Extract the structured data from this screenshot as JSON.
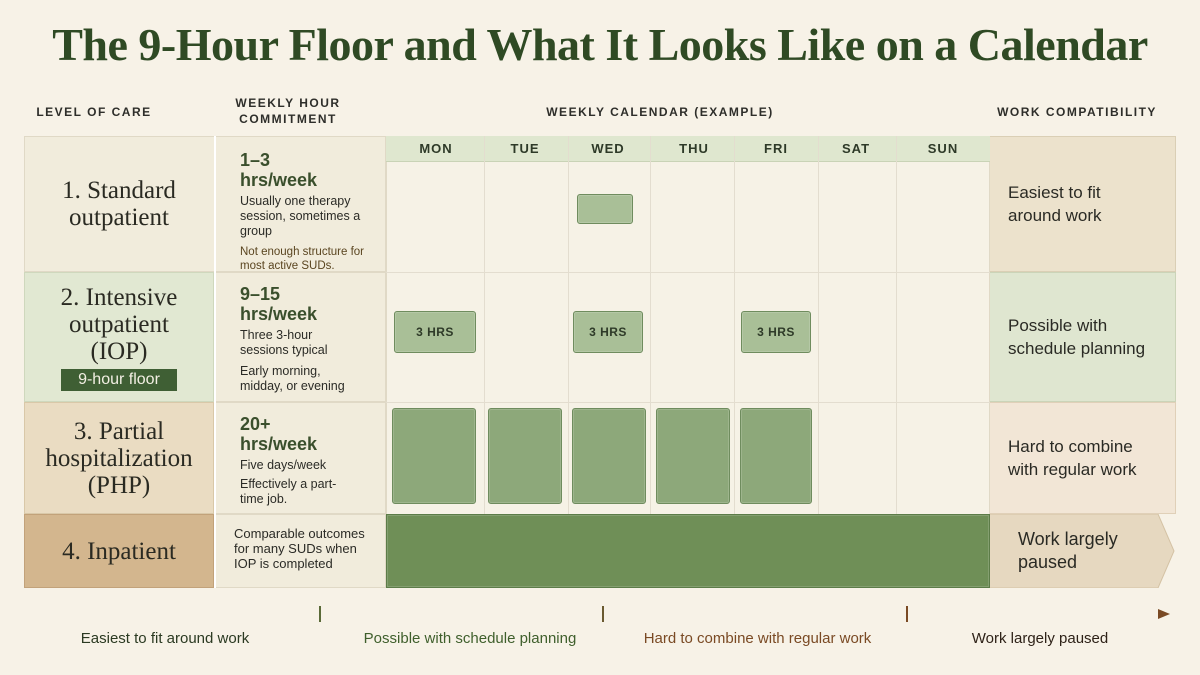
{
  "title": "The 9-Hour Floor and What It Looks Like on a Calendar",
  "headers": {
    "level_of_care": "LEVEL OF CARE",
    "weekly_hour_line1": "WEEKLY HOUR",
    "weekly_hour_line2": "COMMITMENT",
    "weekly_calendar": "WEEKLY CALENDAR (EXAMPLE)",
    "work_compat": "WORK COMPATIBILITY"
  },
  "days": [
    "MON",
    "TUE",
    "WED",
    "THU",
    "FRI",
    "SAT",
    "SUN"
  ],
  "rows": [
    {
      "care_line1": "1. Standard",
      "care_line2": "outpatient",
      "hours_big1": "1–3",
      "hours_big2": "hrs/week",
      "desc": "Usually one therapy session, sometimes a group",
      "note": "Not enough structure for most active SUDs.",
      "compat": "Easiest to fit around work"
    },
    {
      "care_line1": "2. Intensive",
      "care_line2": "outpatient",
      "care_line3": "(IOP)",
      "badge": "9-hour floor",
      "hours_big1": "9–15",
      "hours_big2": "hrs/week",
      "desc": "Three 3-hour sessions typical",
      "note": "Early morning, midday, or evening",
      "block_label": "3 HRS",
      "compat": "Possible with schedule planning"
    },
    {
      "care_line1": "3. Partial",
      "care_line2": "hospitalization",
      "care_line3": "(PHP)",
      "hours_big1": "20+",
      "hours_big2": "hrs/week",
      "desc": "Five days/week",
      "note": "Effectively a part-time job.",
      "compat": "Hard to combine with regular work"
    },
    {
      "care_line1": "4. Inpatient",
      "desc": "Comparable outcomes for many SUDs when IOP is completed",
      "compat": "Work largely paused"
    }
  ],
  "timeline": [
    "Easiest to fit around work",
    "Possible with schedule planning",
    "Hard to combine with regular work",
    "Work largely paused"
  ],
  "colors": {
    "title": "#2f4a24",
    "block": "#8da87a",
    "timeline_start": "#4a6b3a",
    "timeline_end": "#7a4a24"
  }
}
